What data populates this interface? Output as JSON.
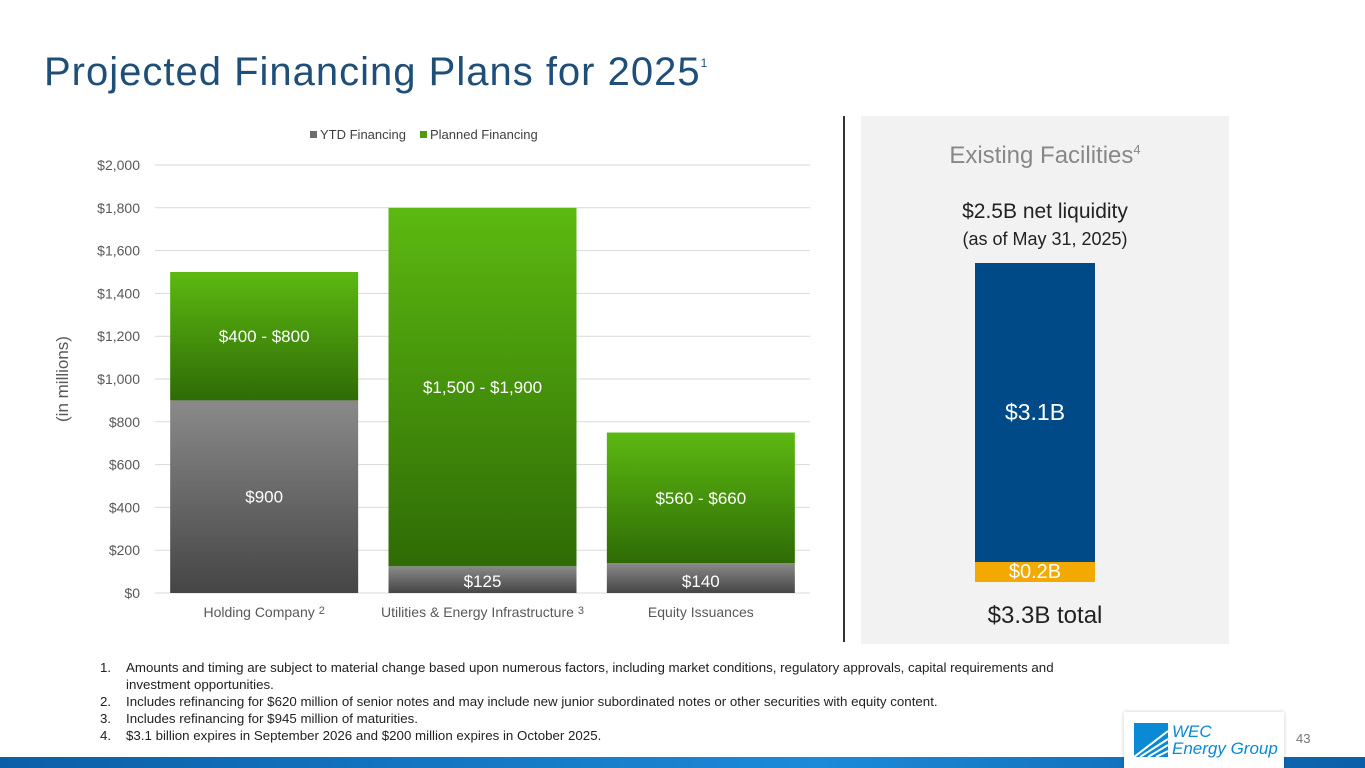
{
  "title": "Projected Financing Plans for 2025",
  "title_sup": "1",
  "chart_data": {
    "type": "bar",
    "stacked": true,
    "ylabel": "(in millions)",
    "ylim": [
      0,
      2000
    ],
    "yticks": [
      "$0",
      "$200",
      "$400",
      "$600",
      "$800",
      "$1,000",
      "$1,200",
      "$1,400",
      "$1,600",
      "$1,800",
      "$2,000"
    ],
    "ytick_values": [
      0,
      200,
      400,
      600,
      800,
      1000,
      1200,
      1400,
      1600,
      1800,
      2000
    ],
    "categories": [
      "Holding Company",
      "Utilities & Energy Infrastructure",
      "Equity Issuances"
    ],
    "category_sups": [
      "2",
      "3",
      ""
    ],
    "grid": true,
    "legend_position": "top",
    "series": [
      {
        "name": "YTD Financing",
        "color": "#6d6d6d",
        "values": [
          900,
          125,
          140
        ],
        "labels": [
          "$900",
          "$125",
          "$140"
        ]
      },
      {
        "name": "Planned Financing",
        "color": "#4c9a0f",
        "values": [
          600,
          1675,
          610
        ],
        "labels": [
          "$400 - $800",
          "$1,500 - $1,900",
          "$560 - $660"
        ]
      }
    ]
  },
  "facilities": {
    "title": "Existing Facilities",
    "title_sup": "4",
    "liquidity": "$2.5B net liquidity",
    "as_of": "(as of May 31, 2025)",
    "big": "$3.1B",
    "small": "$0.2B",
    "total": "$3.3B total",
    "colors": {
      "big": "#004b87",
      "small": "#f2a900"
    }
  },
  "notes": [
    {
      "n": "1.",
      "text": "Amounts and timing are subject to material change based upon numerous factors, including market conditions, regulatory approvals, capital requirements and investment opportunities."
    },
    {
      "n": "2.",
      "text": "Includes refinancing for $620 million of senior notes and may include new junior subordinated notes or other securities with equity content."
    },
    {
      "n": "3.",
      "text": "Includes refinancing for $945 million of maturities."
    },
    {
      "n": "4.",
      "text": "$3.1 billion expires in September 2026 and $200 million expires in October 2025."
    }
  ],
  "logo": {
    "line1": "WEC",
    "line2": "Energy Group"
  },
  "page_number": "43"
}
